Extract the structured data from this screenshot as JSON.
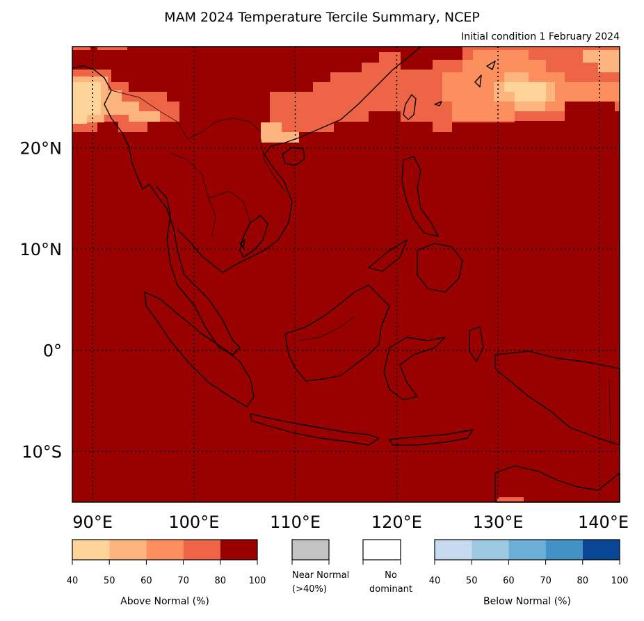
{
  "title": "MAM 2024 Temperature Tercile Summary, NCEP",
  "subtitle": "Initial condition 1 February 2024",
  "map": {
    "lon_range": [
      88,
      142
    ],
    "lat_range": [
      -15,
      30
    ],
    "lat_ticks": [
      {
        "value": 20,
        "label": "20°N"
      },
      {
        "value": 10,
        "label": "10°N"
      },
      {
        "value": 0,
        "label": "0°"
      },
      {
        "value": -10,
        "label": "10°S"
      }
    ],
    "lon_ticks": [
      {
        "value": 90,
        "label": "90°E"
      },
      {
        "value": 100,
        "label": "100°E"
      },
      {
        "value": 110,
        "label": "110°E"
      },
      {
        "value": 120,
        "label": "120°E"
      },
      {
        "value": 130,
        "label": "130°E"
      },
      {
        "value": 140,
        "label": "140°E"
      }
    ],
    "background_color": "#990000"
  },
  "colorbars": {
    "above": {
      "label": "Above Normal (%)",
      "ticks": [
        "40",
        "50",
        "60",
        "70",
        "80",
        "100"
      ],
      "colors": [
        "#fed49a",
        "#fcb57e",
        "#fc8f5e",
        "#ed6446",
        "#990000"
      ]
    },
    "near": {
      "label": "Near Normal\n(>40%)",
      "color": "#c4c4c4"
    },
    "none": {
      "label": "No\ndominant",
      "color": "#ffffff"
    },
    "below": {
      "label": "Below Normal (%)",
      "ticks": [
        "40",
        "50",
        "60",
        "70",
        "80",
        "100"
      ],
      "colors": [
        "#c6dbef",
        "#9ecae1",
        "#6baed6",
        "#4292c6",
        "#084594"
      ]
    }
  }
}
